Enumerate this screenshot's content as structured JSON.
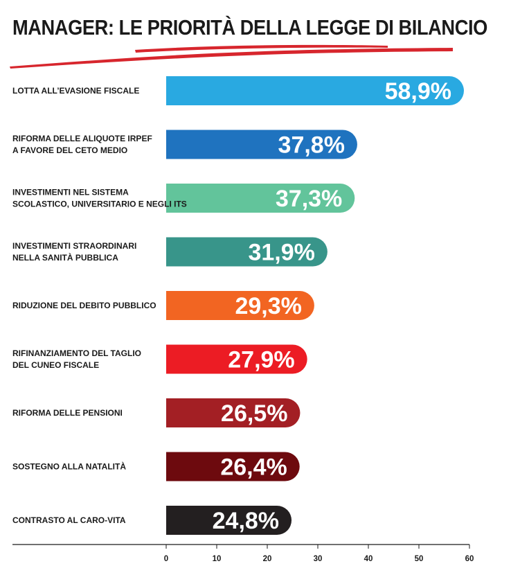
{
  "chart_data": {
    "type": "bar",
    "orientation": "horizontal",
    "title": "MANAGER: LE PRIORITÀ DELLA LEGGE DI BILANCIO",
    "categories": [
      [
        "LOTTA ALL’EVASIONE FISCALE"
      ],
      [
        "RIFORMA DELLE ALIQUOTE IRPEF",
        "A FAVORE DEL CETO MEDIO"
      ],
      [
        "INVESTIMENTI NEL SISTEMA",
        "SCOLASTICO, UNIVERSITARIO E NEGLI ITS"
      ],
      [
        "INVESTIMENTI STRAORDINARI",
        "NELLA SANITÀ PUBBLICA"
      ],
      [
        "RIDUZIONE DEL DEBITO PUBBLICO"
      ],
      [
        "RIFINANZIAMENTO DEL TAGLIO",
        "DEL CUNEO FISCALE"
      ],
      [
        "RIFORMA DELLE PENSIONI"
      ],
      [
        "SOSTEGNO ALLA NATALITÀ"
      ],
      [
        "CONTRASTO AL CARO-VITA"
      ]
    ],
    "values": [
      58.9,
      37.8,
      37.3,
      31.9,
      29.3,
      27.9,
      26.5,
      26.4,
      24.8
    ],
    "value_labels": [
      "58,9%",
      "37,8%",
      "37,3%",
      "31,9%",
      "29,3%",
      "27,9%",
      "26,5%",
      "26,4%",
      "24,8%"
    ],
    "colors": [
      "#29a9e1",
      "#1f73bf",
      "#62c49b",
      "#38958a",
      "#f26522",
      "#ec1c24",
      "#a31f24",
      "#6d0a0e",
      "#231f20"
    ],
    "xlim": [
      0,
      60
    ],
    "x_ticks": [
      "0",
      "10",
      "20",
      "30",
      "40",
      "50",
      "60"
    ],
    "xlabel": "",
    "ylabel": "",
    "grid": false,
    "accent_color": "#d7262d"
  }
}
